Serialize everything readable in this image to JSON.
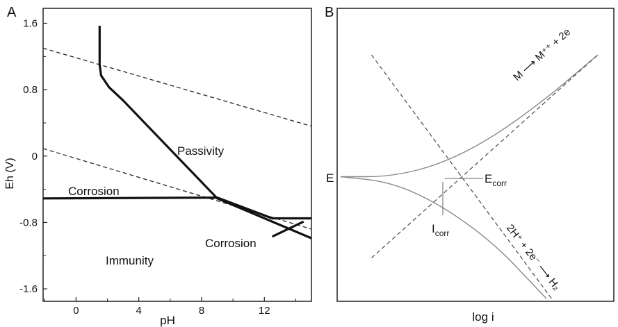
{
  "chart_data": [
    {
      "type": "line",
      "panel_label": "A",
      "xlabel": "pH",
      "ylabel": "Eh (V)",
      "xlim": [
        -2.1,
        15
      ],
      "ylim": [
        -1.75,
        1.78
      ],
      "x_ticks": [
        0,
        4,
        8,
        12
      ],
      "x_tick_labels": [
        "0",
        "4",
        "8",
        "12"
      ],
      "y_ticks": [
        1.6,
        0.8,
        0,
        -0.8,
        -1.6
      ],
      "y_tick_labels": [
        "1.6",
        "0.8",
        "0",
        "-0.8",
        "-1.6"
      ],
      "series": [
        {
          "style": "dashed",
          "points": [
            [
              -2.1,
              1.3
            ],
            [
              15,
              0.36
            ]
          ]
        },
        {
          "style": "dashed",
          "points": [
            [
              -2.1,
              0.09
            ],
            [
              15,
              -0.88
            ]
          ]
        },
        {
          "style": "solid-bold",
          "points": [
            [
              1.5,
              1.57
            ],
            [
              1.5,
              1.47
            ],
            [
              1.5,
              1.1
            ],
            [
              1.6,
              0.97
            ],
            [
              2.1,
              0.83
            ],
            [
              3.0,
              0.67
            ],
            [
              9.0,
              -0.51
            ],
            [
              15,
              -0.99
            ]
          ]
        },
        {
          "style": "solid-bold",
          "points": [
            [
              -2.1,
              -0.51
            ],
            [
              9.0,
              -0.5
            ],
            [
              12.5,
              -0.75
            ],
            [
              15,
              -0.75
            ]
          ]
        },
        {
          "style": "solid-bold",
          "points": [
            [
              12.5,
              -0.97
            ],
            [
              14.5,
              -0.79
            ]
          ]
        }
      ],
      "annotations": [
        "Passivity",
        "Corrosion",
        "Corrosion",
        "Immunity"
      ]
    },
    {
      "type": "line",
      "panel_label": "B",
      "xlabel": "log i",
      "ylabel": "",
      "x_ticks": [],
      "y_ticks": [],
      "series": [
        {
          "style": "solid",
          "points": [
            [
              0,
              0.45
            ],
            [
              0.2,
              0.45
            ],
            [
              0.4,
              0.5
            ],
            [
              0.6,
              0.6
            ],
            [
              0.8,
              0.74
            ],
            [
              0.9,
              0.82
            ],
            [
              1.0,
              0.9
            ]
          ]
        },
        {
          "style": "solid",
          "points": [
            [
              0,
              0.45
            ],
            [
              0.2,
              0.43
            ],
            [
              0.4,
              0.34
            ],
            [
              0.6,
              0.2
            ],
            [
              0.75,
              0.05
            ],
            [
              0.8,
              0.0
            ]
          ]
        },
        {
          "style": "dashed",
          "points": [
            [
              0.12,
              0.15
            ],
            [
              1.0,
              0.9
            ]
          ]
        },
        {
          "style": "dashed",
          "points": [
            [
              0.12,
              0.9
            ],
            [
              0.82,
              0.0
            ]
          ]
        }
      ],
      "annotations": {
        "e_label": "E",
        "anodic": "M ⟶ M⁺⁺ + 2e",
        "cathodic": "2H⁺ + 2e⁻ ⟶ H₂",
        "ecorr": "E",
        "ecorr_sub": "corr",
        "icorr": "I",
        "icorr_sub": "corr"
      }
    }
  ],
  "colors": {
    "bold_line": "#111111",
    "thin_line": "#888888",
    "dashed_line": "#333333",
    "frame": "#222222"
  }
}
